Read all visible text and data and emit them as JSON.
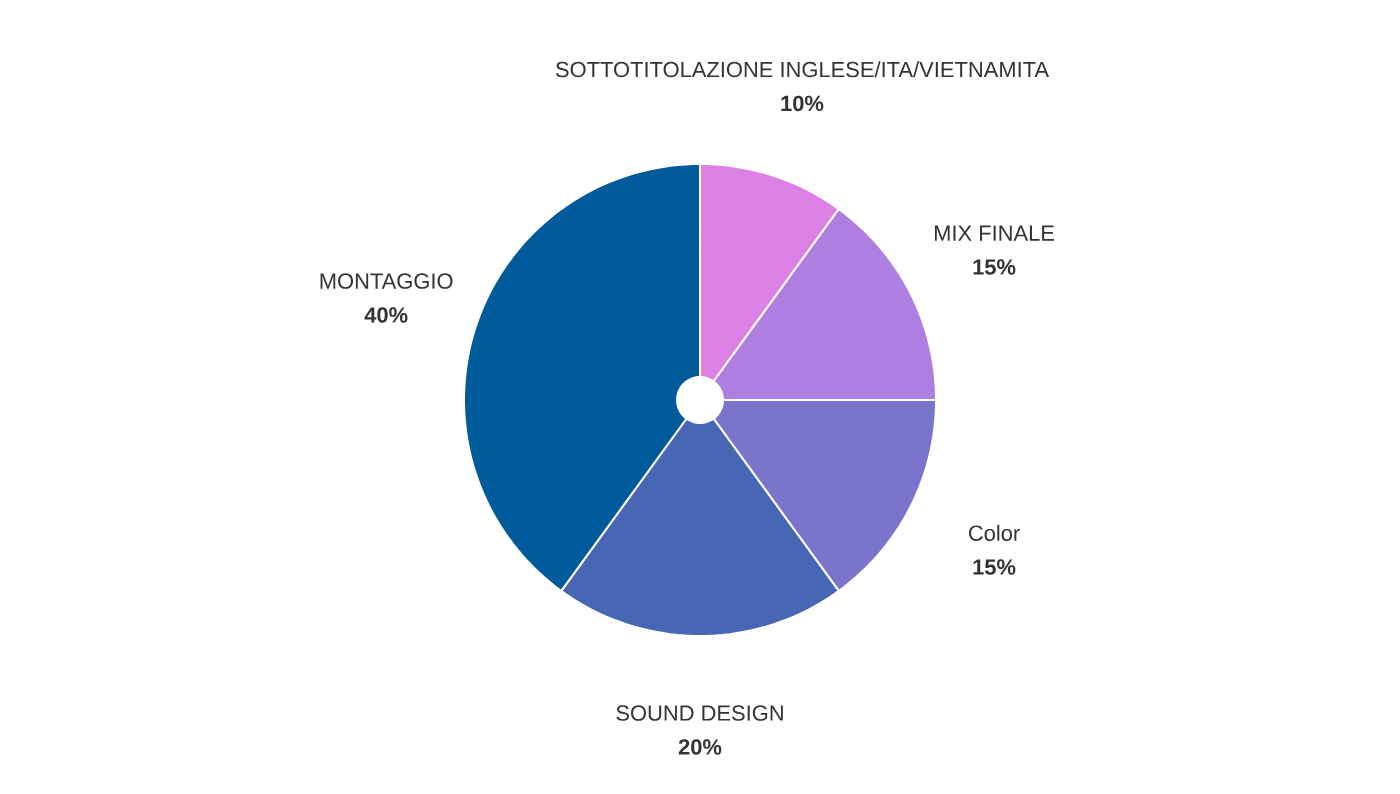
{
  "chart_data": {
    "type": "pie",
    "categories": [
      "SOTTOTITOLAZIONE INGLESE/ITA/VIETNAMITA",
      "MIX FINALE",
      "Color",
      "SOUND DESIGN",
      "MONTAGGIO"
    ],
    "values": [
      10,
      15,
      15,
      20,
      40
    ],
    "value_labels": [
      "10%",
      "15%",
      "15%",
      "20%",
      "40%"
    ],
    "colors": [
      "#dd80e6",
      "#ae7fe0",
      "#7b74cc",
      "#4767b4",
      "#015a9c"
    ]
  }
}
